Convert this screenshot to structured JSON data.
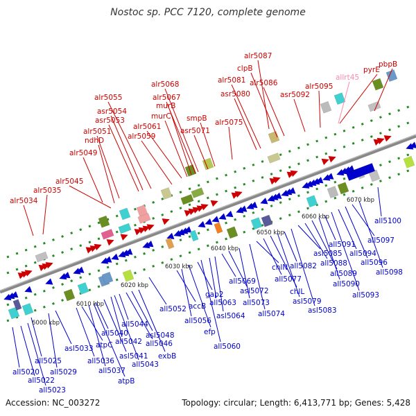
{
  "title": "Nostoc sp. PCC 7120, complete genome",
  "footer": {
    "accession": "Accession: NC_003272",
    "info": "Topology: circular; Length: 6,413,771 bp; Genes: 5,428"
  },
  "colors": {
    "forward": "#cc0000",
    "reverse": "#0000cc",
    "trna": "#ff88aa",
    "axis": "#888888",
    "dots": "#2a8a2a"
  },
  "ticks": [
    {
      "label": "6000 kbp"
    },
    {
      "label": "6010 kbp"
    },
    {
      "label": "6020 kbp"
    },
    {
      "label": "6030 kbp"
    },
    {
      "label": "6040 kbp"
    },
    {
      "label": "6050 kbp"
    },
    {
      "label": "6060 kbp"
    },
    {
      "label": "6070 kbp"
    }
  ],
  "top_labels": [
    {
      "text": "alr5034"
    },
    {
      "text": "alr5035"
    },
    {
      "text": "alr5045"
    },
    {
      "text": "alr5049"
    },
    {
      "text": "ndhD"
    },
    {
      "text": "alr5051"
    },
    {
      "text": "asr5053"
    },
    {
      "text": "asr5054"
    },
    {
      "text": "alr5055"
    },
    {
      "text": "alr5059"
    },
    {
      "text": "alr5061"
    },
    {
      "text": "murC"
    },
    {
      "text": "murB"
    },
    {
      "text": "alr5067"
    },
    {
      "text": "alr5068"
    },
    {
      "text": "smpB"
    },
    {
      "text": "asr5071"
    },
    {
      "text": "alr5075"
    },
    {
      "text": "asr5080"
    },
    {
      "text": "alr5081"
    },
    {
      "text": "clpB"
    },
    {
      "text": "alr5086"
    },
    {
      "text": "alr5087"
    },
    {
      "text": "asr5092"
    },
    {
      "text": "alr5095"
    },
    {
      "text": "allrt45"
    },
    {
      "text": "pyrE"
    },
    {
      "text": "pbpB"
    }
  ],
  "bottom_labels": [
    {
      "text": "all5020"
    },
    {
      "text": "all5022"
    },
    {
      "text": "all5023"
    },
    {
      "text": "all5025"
    },
    {
      "text": "all5029"
    },
    {
      "text": "asl5033"
    },
    {
      "text": "all5036"
    },
    {
      "text": "atpC"
    },
    {
      "text": "all5037"
    },
    {
      "text": "atpB"
    },
    {
      "text": "all5040"
    },
    {
      "text": "asl5041"
    },
    {
      "text": "all5042"
    },
    {
      "text": "all5043"
    },
    {
      "text": "all5044"
    },
    {
      "text": "all5046"
    },
    {
      "text": "asl5048"
    },
    {
      "text": "exbB"
    },
    {
      "text": "all5052"
    },
    {
      "text": "accB"
    },
    {
      "text": "all5056"
    },
    {
      "text": "efp"
    },
    {
      "text": "gap2"
    },
    {
      "text": "all5060"
    },
    {
      "text": "all5063"
    },
    {
      "text": "asl5064"
    },
    {
      "text": "all5069"
    },
    {
      "text": "asl5072"
    },
    {
      "text": "all5073"
    },
    {
      "text": "all5074"
    },
    {
      "text": "chlN"
    },
    {
      "text": "all5077"
    },
    {
      "text": "chlL"
    },
    {
      "text": "asl5079"
    },
    {
      "text": "all5082"
    },
    {
      "text": "asl5083"
    },
    {
      "text": "asl5085"
    },
    {
      "text": "all5088"
    },
    {
      "text": "all5089"
    },
    {
      "text": "all5090"
    },
    {
      "text": "all5091"
    },
    {
      "text": "all5093"
    },
    {
      "text": "all5094"
    },
    {
      "text": "all5096"
    },
    {
      "text": "all5097"
    },
    {
      "text": "all5098"
    },
    {
      "text": "all5100"
    }
  ]
}
